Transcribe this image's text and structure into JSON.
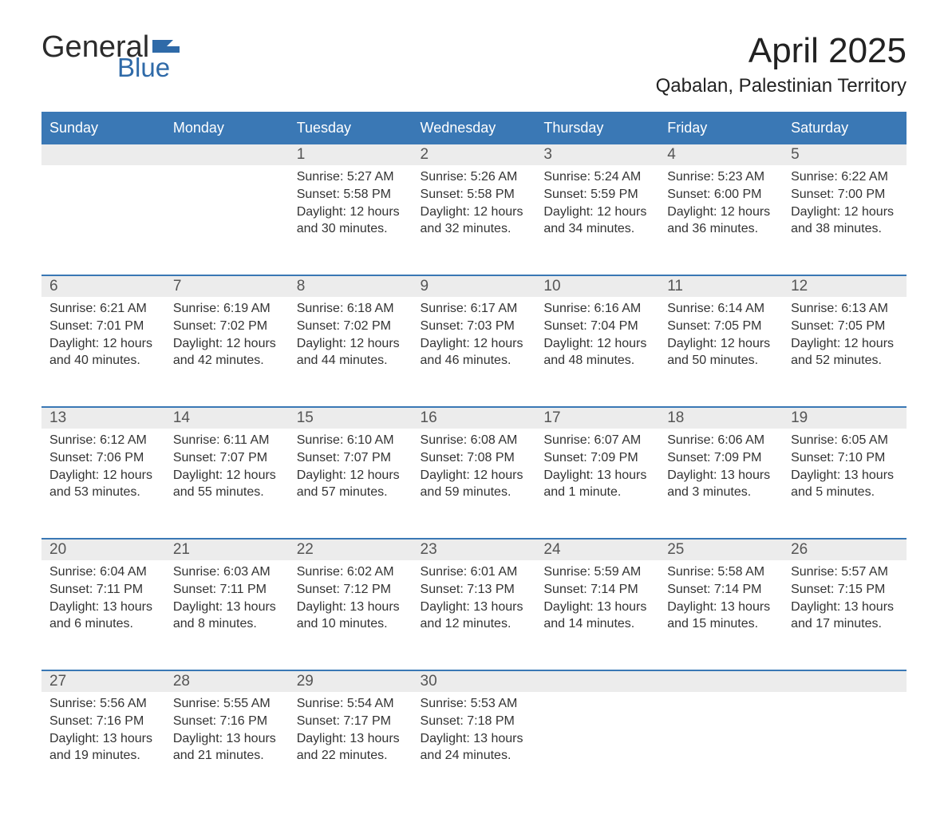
{
  "brand": {
    "part1": "General",
    "part2": "Blue",
    "flag_color": "#2f6aa8"
  },
  "title": "April 2025",
  "location": "Qabalan, Palestinian Territory",
  "colors": {
    "header_bg": "#3a78b5",
    "header_text": "#ffffff",
    "daynum_bg": "#ececec",
    "row_border": "#3a78b5",
    "body_text": "#333333",
    "page_bg": "#ffffff"
  },
  "typography": {
    "title_fontsize_pt": 33,
    "location_fontsize_pt": 18,
    "header_fontsize_pt": 14,
    "daynum_fontsize_pt": 14,
    "body_fontsize_pt": 12
  },
  "layout": {
    "columns": 7,
    "rows": 5,
    "first_weekday_index": 2
  },
  "day_headers": [
    "Sunday",
    "Monday",
    "Tuesday",
    "Wednesday",
    "Thursday",
    "Friday",
    "Saturday"
  ],
  "weeks": [
    [
      null,
      null,
      {
        "n": "1",
        "sr": "Sunrise: 5:27 AM",
        "ss": "Sunset: 5:58 PM",
        "d1": "Daylight: 12 hours",
        "d2": "and 30 minutes."
      },
      {
        "n": "2",
        "sr": "Sunrise: 5:26 AM",
        "ss": "Sunset: 5:58 PM",
        "d1": "Daylight: 12 hours",
        "d2": "and 32 minutes."
      },
      {
        "n": "3",
        "sr": "Sunrise: 5:24 AM",
        "ss": "Sunset: 5:59 PM",
        "d1": "Daylight: 12 hours",
        "d2": "and 34 minutes."
      },
      {
        "n": "4",
        "sr": "Sunrise: 5:23 AM",
        "ss": "Sunset: 6:00 PM",
        "d1": "Daylight: 12 hours",
        "d2": "and 36 minutes."
      },
      {
        "n": "5",
        "sr": "Sunrise: 6:22 AM",
        "ss": "Sunset: 7:00 PM",
        "d1": "Daylight: 12 hours",
        "d2": "and 38 minutes."
      }
    ],
    [
      {
        "n": "6",
        "sr": "Sunrise: 6:21 AM",
        "ss": "Sunset: 7:01 PM",
        "d1": "Daylight: 12 hours",
        "d2": "and 40 minutes."
      },
      {
        "n": "7",
        "sr": "Sunrise: 6:19 AM",
        "ss": "Sunset: 7:02 PM",
        "d1": "Daylight: 12 hours",
        "d2": "and 42 minutes."
      },
      {
        "n": "8",
        "sr": "Sunrise: 6:18 AM",
        "ss": "Sunset: 7:02 PM",
        "d1": "Daylight: 12 hours",
        "d2": "and 44 minutes."
      },
      {
        "n": "9",
        "sr": "Sunrise: 6:17 AM",
        "ss": "Sunset: 7:03 PM",
        "d1": "Daylight: 12 hours",
        "d2": "and 46 minutes."
      },
      {
        "n": "10",
        "sr": "Sunrise: 6:16 AM",
        "ss": "Sunset: 7:04 PM",
        "d1": "Daylight: 12 hours",
        "d2": "and 48 minutes."
      },
      {
        "n": "11",
        "sr": "Sunrise: 6:14 AM",
        "ss": "Sunset: 7:05 PM",
        "d1": "Daylight: 12 hours",
        "d2": "and 50 minutes."
      },
      {
        "n": "12",
        "sr": "Sunrise: 6:13 AM",
        "ss": "Sunset: 7:05 PM",
        "d1": "Daylight: 12 hours",
        "d2": "and 52 minutes."
      }
    ],
    [
      {
        "n": "13",
        "sr": "Sunrise: 6:12 AM",
        "ss": "Sunset: 7:06 PM",
        "d1": "Daylight: 12 hours",
        "d2": "and 53 minutes."
      },
      {
        "n": "14",
        "sr": "Sunrise: 6:11 AM",
        "ss": "Sunset: 7:07 PM",
        "d1": "Daylight: 12 hours",
        "d2": "and 55 minutes."
      },
      {
        "n": "15",
        "sr": "Sunrise: 6:10 AM",
        "ss": "Sunset: 7:07 PM",
        "d1": "Daylight: 12 hours",
        "d2": "and 57 minutes."
      },
      {
        "n": "16",
        "sr": "Sunrise: 6:08 AM",
        "ss": "Sunset: 7:08 PM",
        "d1": "Daylight: 12 hours",
        "d2": "and 59 minutes."
      },
      {
        "n": "17",
        "sr": "Sunrise: 6:07 AM",
        "ss": "Sunset: 7:09 PM",
        "d1": "Daylight: 13 hours",
        "d2": "and 1 minute."
      },
      {
        "n": "18",
        "sr": "Sunrise: 6:06 AM",
        "ss": "Sunset: 7:09 PM",
        "d1": "Daylight: 13 hours",
        "d2": "and 3 minutes."
      },
      {
        "n": "19",
        "sr": "Sunrise: 6:05 AM",
        "ss": "Sunset: 7:10 PM",
        "d1": "Daylight: 13 hours",
        "d2": "and 5 minutes."
      }
    ],
    [
      {
        "n": "20",
        "sr": "Sunrise: 6:04 AM",
        "ss": "Sunset: 7:11 PM",
        "d1": "Daylight: 13 hours",
        "d2": "and 6 minutes."
      },
      {
        "n": "21",
        "sr": "Sunrise: 6:03 AM",
        "ss": "Sunset: 7:11 PM",
        "d1": "Daylight: 13 hours",
        "d2": "and 8 minutes."
      },
      {
        "n": "22",
        "sr": "Sunrise: 6:02 AM",
        "ss": "Sunset: 7:12 PM",
        "d1": "Daylight: 13 hours",
        "d2": "and 10 minutes."
      },
      {
        "n": "23",
        "sr": "Sunrise: 6:01 AM",
        "ss": "Sunset: 7:13 PM",
        "d1": "Daylight: 13 hours",
        "d2": "and 12 minutes."
      },
      {
        "n": "24",
        "sr": "Sunrise: 5:59 AM",
        "ss": "Sunset: 7:14 PM",
        "d1": "Daylight: 13 hours",
        "d2": "and 14 minutes."
      },
      {
        "n": "25",
        "sr": "Sunrise: 5:58 AM",
        "ss": "Sunset: 7:14 PM",
        "d1": "Daylight: 13 hours",
        "d2": "and 15 minutes."
      },
      {
        "n": "26",
        "sr": "Sunrise: 5:57 AM",
        "ss": "Sunset: 7:15 PM",
        "d1": "Daylight: 13 hours",
        "d2": "and 17 minutes."
      }
    ],
    [
      {
        "n": "27",
        "sr": "Sunrise: 5:56 AM",
        "ss": "Sunset: 7:16 PM",
        "d1": "Daylight: 13 hours",
        "d2": "and 19 minutes."
      },
      {
        "n": "28",
        "sr": "Sunrise: 5:55 AM",
        "ss": "Sunset: 7:16 PM",
        "d1": "Daylight: 13 hours",
        "d2": "and 21 minutes."
      },
      {
        "n": "29",
        "sr": "Sunrise: 5:54 AM",
        "ss": "Sunset: 7:17 PM",
        "d1": "Daylight: 13 hours",
        "d2": "and 22 minutes."
      },
      {
        "n": "30",
        "sr": "Sunrise: 5:53 AM",
        "ss": "Sunset: 7:18 PM",
        "d1": "Daylight: 13 hours",
        "d2": "and 24 minutes."
      },
      null,
      null,
      null
    ]
  ]
}
